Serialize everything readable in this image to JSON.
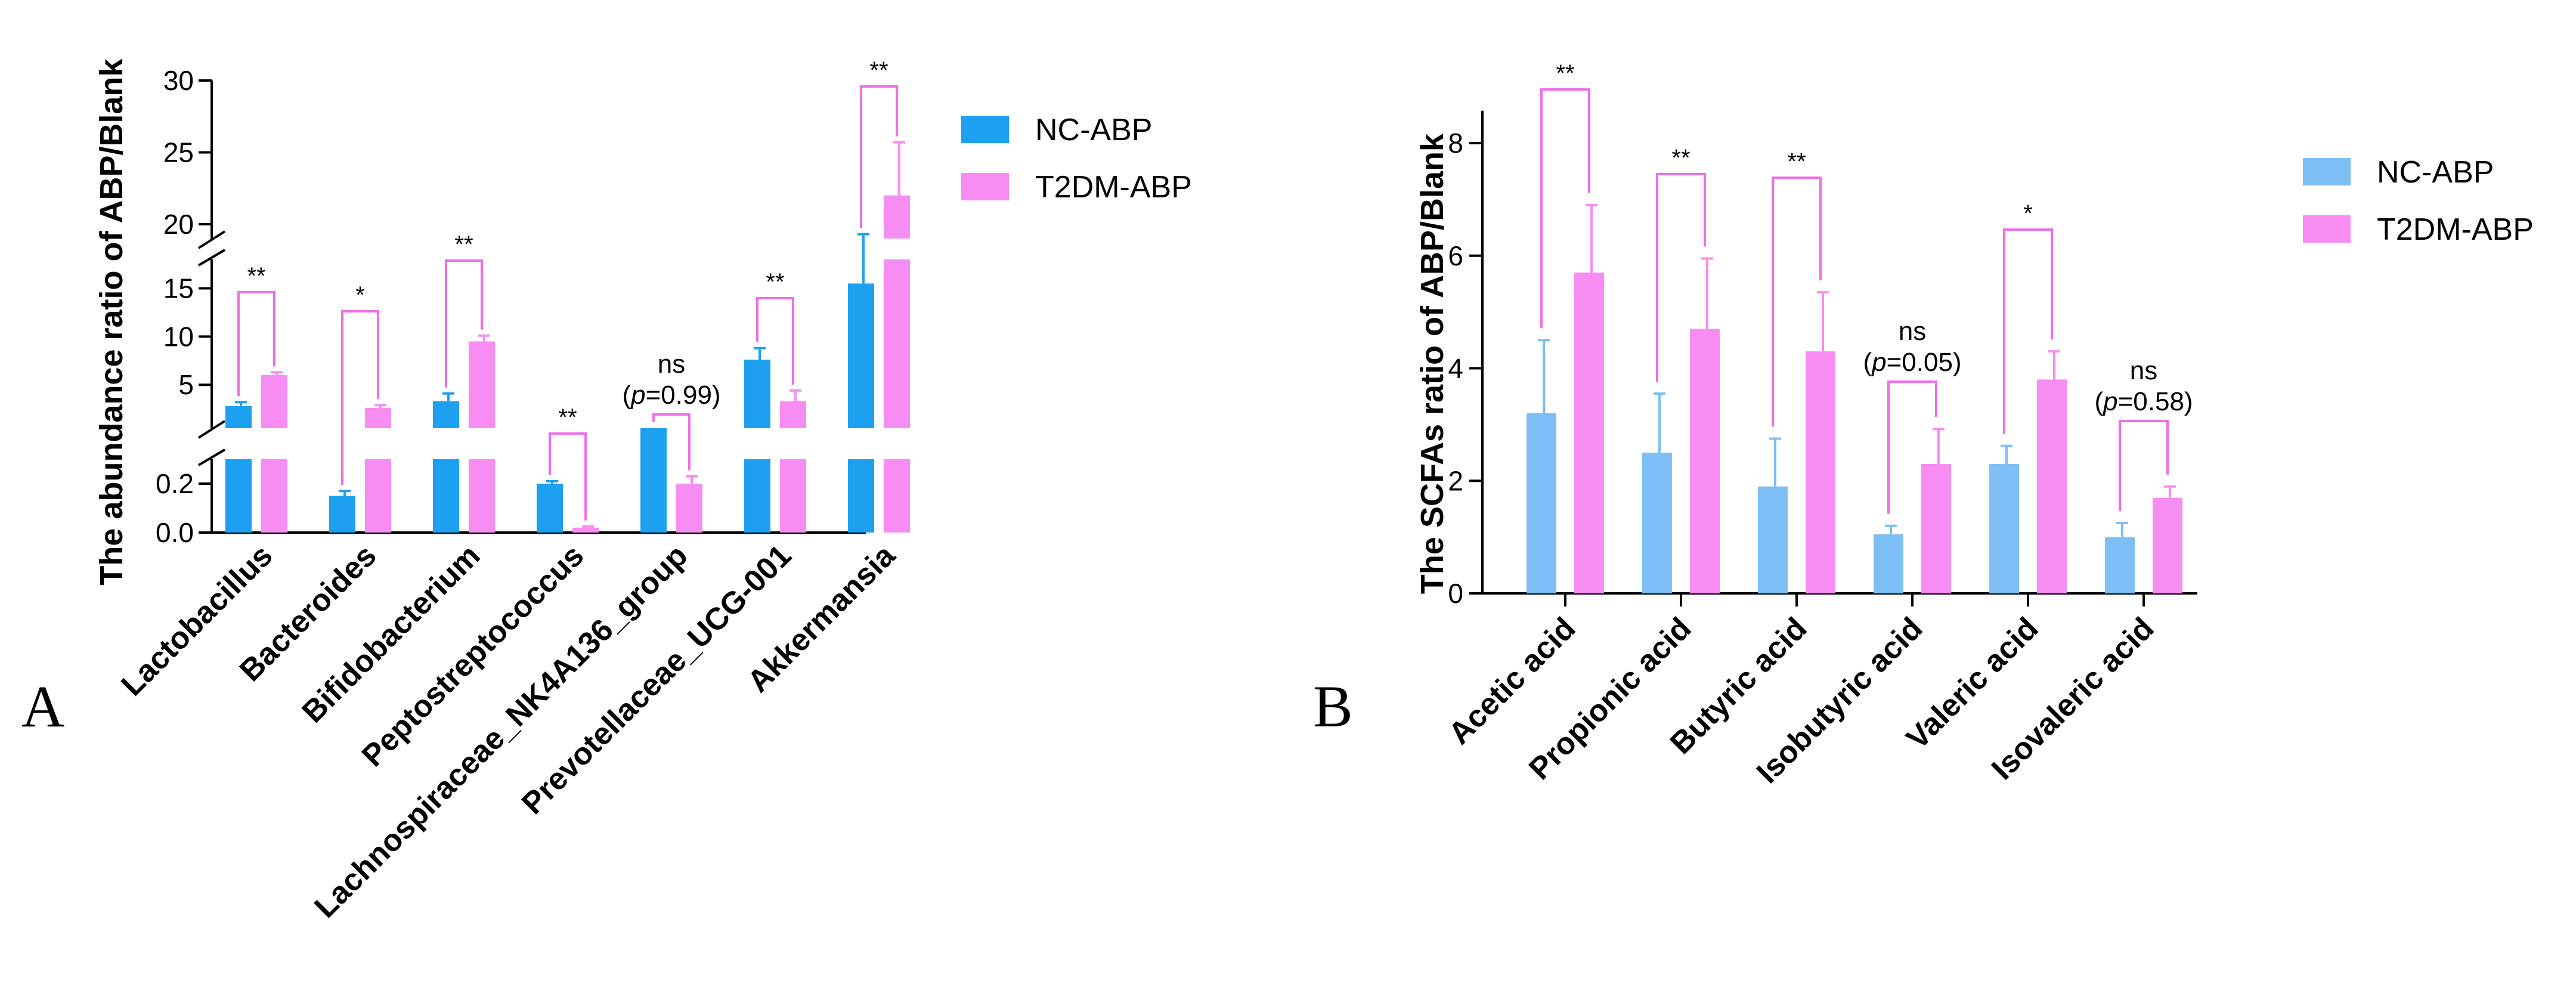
{
  "chart_data": [
    {
      "panel": "A",
      "type": "bar",
      "ylabel": "The abundance ratio of ABP/Blank",
      "categories": [
        "Lactobacillus",
        "Bacteroides",
        "Bifidobacterium",
        "Peptostreptococcus",
        "Lachnospiraceae_NK4A136_group",
        "Prevotellaceae_UCG-001",
        "Akkermansia"
      ],
      "axis_breaks": true,
      "y_segments": [
        {
          "range": [
            0,
            0.3
          ],
          "ticks": [
            0.0,
            0.2
          ]
        },
        {
          "range": [
            0.5,
            18
          ],
          "ticks": [
            5,
            10,
            15
          ]
        },
        {
          "range": [
            19,
            30
          ],
          "ticks": [
            20,
            25,
            30
          ]
        }
      ],
      "series": [
        {
          "name": "NC-ABP",
          "color": "#1ea0f0",
          "values": [
            2.8,
            0.15,
            3.3,
            0.2,
            0.35,
            7.6,
            15.5
          ],
          "errors": [
            0.4,
            0.02,
            0.8,
            0.01,
            0.0,
            1.2,
            3.8
          ]
        },
        {
          "name": "T2DM-ABP",
          "color": "#f78cf3",
          "values": [
            6.0,
            2.6,
            9.5,
            0.02,
            0.2,
            3.3,
            22.0
          ],
          "errors": [
            0.3,
            0.3,
            0.6,
            0.005,
            0.03,
            1.1,
            3.7
          ]
        }
      ],
      "significance": [
        "**",
        "*",
        "**",
        "**",
        "ns|(p=0.99)",
        "**",
        "**"
      ],
      "legend": {
        "position": "right",
        "labels": [
          "NC-ABP",
          "T2DM-ABP"
        ]
      }
    },
    {
      "panel": "B",
      "type": "bar",
      "ylabel": "The SCFAs ratio of ABP/Blank",
      "categories": [
        "Acetic acid",
        "Propionic acid",
        "Butyric acid",
        "Isobutyric acid",
        "Valeric acid",
        "Isovaleric acid"
      ],
      "ylim": [
        0,
        9
      ],
      "yticks": [
        0,
        2,
        4,
        6,
        8
      ],
      "series": [
        {
          "name": "NC-ABP",
          "color": "#7dbff5",
          "values": [
            3.2,
            2.5,
            1.9,
            1.05,
            2.3,
            1.0
          ],
          "errors": [
            1.3,
            1.05,
            0.85,
            0.15,
            0.32,
            0.25
          ]
        },
        {
          "name": "T2DM-ABP",
          "color": "#f78cf3",
          "values": [
            5.7,
            4.7,
            4.3,
            2.3,
            3.8,
            1.7
          ],
          "errors": [
            1.2,
            1.25,
            1.05,
            0.62,
            0.5,
            0.2
          ]
        }
      ],
      "significance": [
        "**",
        "**",
        "**",
        "ns|(p=0.05)",
        "*",
        "ns|(p=0.58)"
      ],
      "legend": {
        "position": "right",
        "labels": [
          "NC-ABP",
          "T2DM-ABP"
        ]
      }
    }
  ],
  "panel_labels": {
    "a": "A",
    "b": "B"
  }
}
